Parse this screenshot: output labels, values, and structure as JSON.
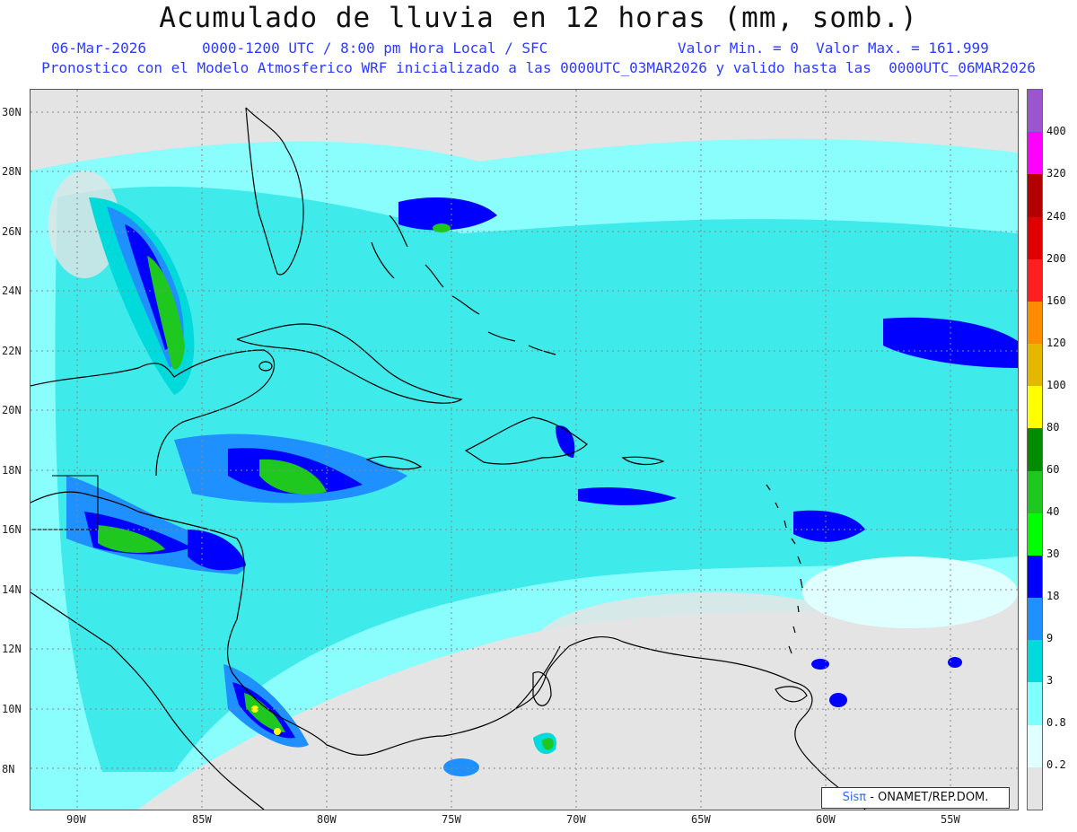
{
  "header": {
    "title": "Acumulado de lluvia en 12 horas (mm, somb.)",
    "date": "06-Mar-2026",
    "period": "0000-1200 UTC / 8:00 pm Hora Local / SFC",
    "value_range": "Valor Min. = 0  Valor Max. = 161.999",
    "model_info": "Pronostico con el Modelo Atmosferico WRF inicializado a las 0000UTC_03MAR2026 y valido hasta las  0000UTC_06MAR2026"
  },
  "axes": {
    "latitude_labels": [
      "30N",
      "28N",
      "26N",
      "24N",
      "22N",
      "20N",
      "18N",
      "16N",
      "14N",
      "12N",
      "10N",
      "8N"
    ],
    "longitude_labels": [
      "90W",
      "85W",
      "80W",
      "75W",
      "70W",
      "65W",
      "60W",
      "55W"
    ]
  },
  "colorbar": {
    "ticks": [
      "400",
      "320",
      "240",
      "200",
      "160",
      "120",
      "100",
      "80",
      "60",
      "40",
      "30",
      "18",
      "9",
      "3",
      "0.8",
      "0.2"
    ],
    "colors": [
      "#9b55cf",
      "#ff00ff",
      "#b40000",
      "#e00000",
      "#ff1f1f",
      "#ff8c00",
      "#e5b800",
      "#ffff00",
      "#008c00",
      "#1ec81e",
      "#00ff00",
      "#0000ff",
      "#1e90ff",
      "#00dada",
      "#7fffff",
      "#e0ffff",
      "#e4e4e4"
    ]
  },
  "legend_colors": {
    "land_outline": "#000000",
    "background": "#e4e4e4"
  },
  "credit": {
    "logo": "Sisπ",
    "text": "- ONAMET/REP.DOM."
  }
}
